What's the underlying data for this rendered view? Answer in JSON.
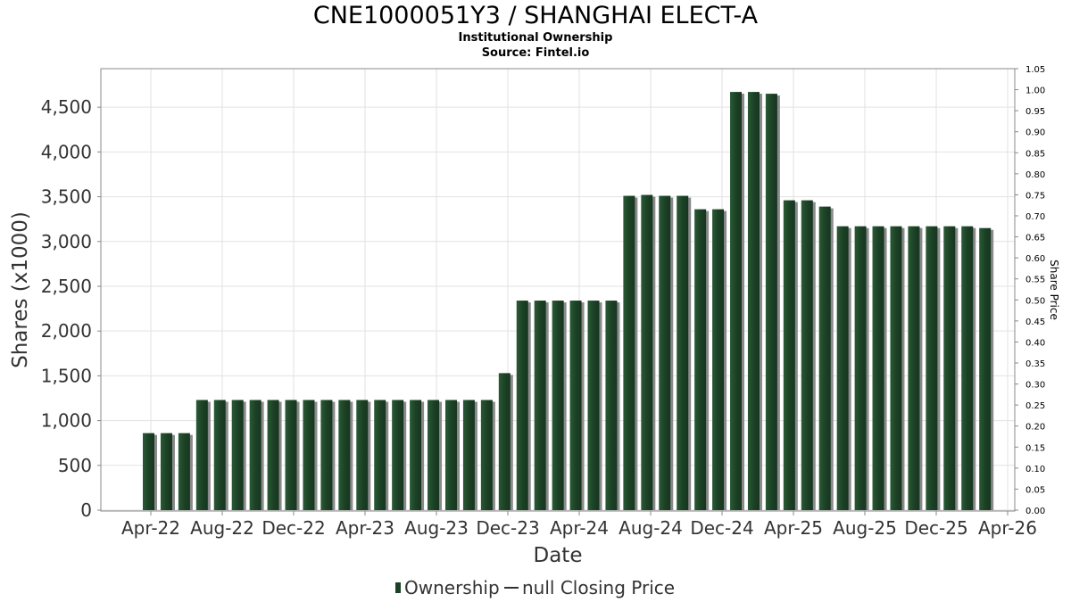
{
  "chart_data": {
    "type": "bar",
    "title": "CNE1000051Y3 / SHANGHAI ELECT-A",
    "subtitle_line1": "Institutional Ownership",
    "subtitle_line2": "Source: Fintel.io",
    "xlabel": "Date",
    "ylabel": "Shares (x1000)",
    "y2label": "Share Price",
    "ylim": [
      0,
      4900
    ],
    "y2lim": [
      0,
      1.05
    ],
    "x_tick_labels": [
      "Apr-22",
      "Aug-22",
      "Dec-22",
      "Apr-23",
      "Aug-23",
      "Dec-23",
      "Apr-24",
      "Aug-24",
      "Dec-24",
      "Apr-25",
      "Aug-25",
      "Dec-25",
      "Apr-26"
    ],
    "y_tick_labels": [
      "0",
      "500",
      "1,000",
      "1,500",
      "2,000",
      "2,500",
      "3,000",
      "3,500",
      "4,000",
      "4,500"
    ],
    "y_tick_values": [
      0,
      500,
      1000,
      1500,
      2000,
      2500,
      3000,
      3500,
      4000,
      4500
    ],
    "y2_tick_labels": [
      "0.00",
      "0.05",
      "0.10",
      "0.15",
      "0.20",
      "0.25",
      "0.30",
      "0.35",
      "0.40",
      "0.45",
      "0.50",
      "0.55",
      "0.60",
      "0.65",
      "0.70",
      "0.75",
      "0.80",
      "0.85",
      "0.90",
      "0.95",
      "1.00",
      "1.05"
    ],
    "series": [
      {
        "name": "Ownership",
        "color": "#1c4226",
        "values": [
          860,
          860,
          860,
          1230,
          1230,
          1230,
          1230,
          1230,
          1230,
          1230,
          1230,
          1230,
          1230,
          1230,
          1230,
          1230,
          1230,
          1230,
          1230,
          1230,
          1530,
          2340,
          2340,
          2340,
          2340,
          2340,
          2340,
          3510,
          3520,
          3510,
          3510,
          3360,
          3360,
          4670,
          4670,
          4650,
          3460,
          3460,
          3390,
          3170,
          3170,
          3170,
          3170,
          3170,
          3170,
          3170,
          3170,
          3150
        ]
      },
      {
        "name": "null Closing Price",
        "color": "#333333",
        "values": []
      }
    ],
    "legend": [
      "Ownership",
      "null Closing Price"
    ],
    "legend_position": "bottom",
    "grid": true
  }
}
